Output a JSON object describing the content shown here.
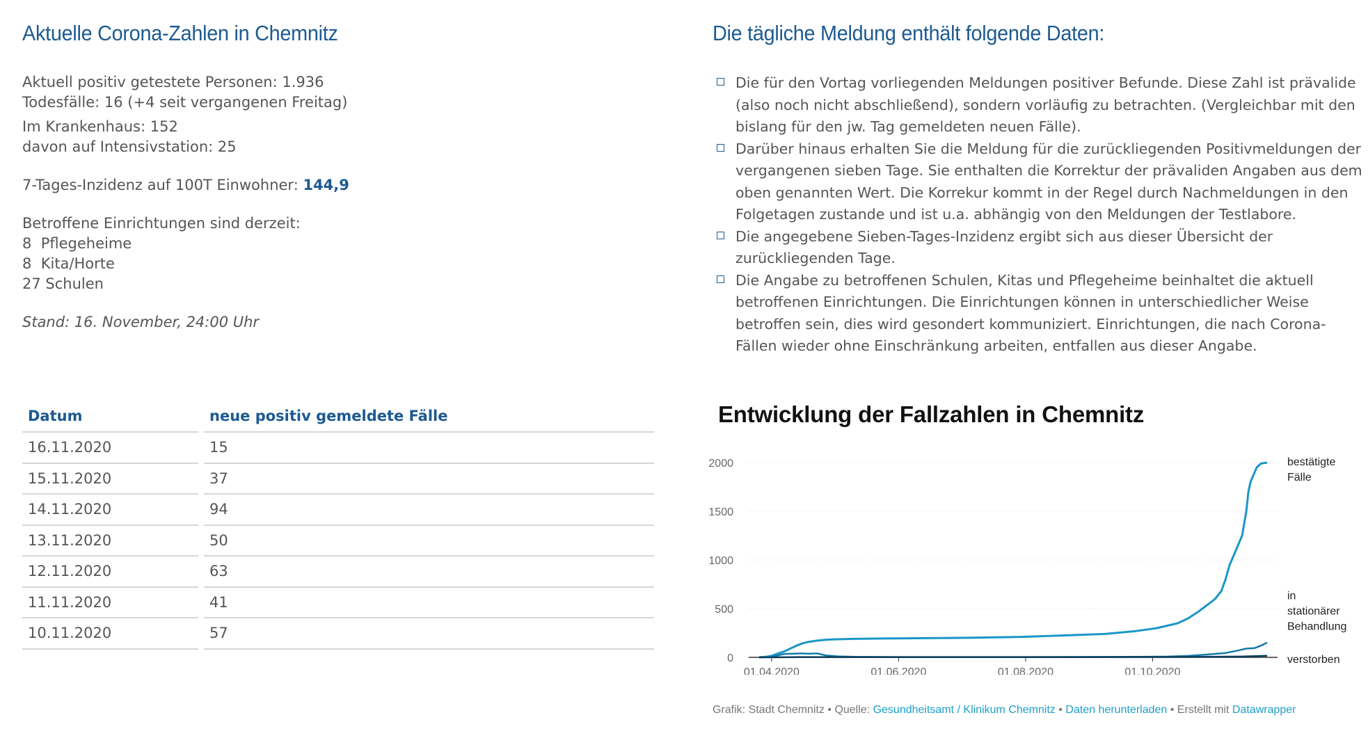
{
  "left": {
    "title": "Aktuelle Corona-Zahlen in Chemnitz",
    "positive": "Aktuell positiv getestete Personen: 1.936",
    "deaths": "Todesfälle: 16 (+4 seit vergangenen Freitag)",
    "hospital": "Im Krankenhaus: 152",
    "icu": "davon auf Intensivstation: 25",
    "incidence_label": "7-Tages-Inzidenz auf 100T Einwohner: ",
    "incidence_value": "144,9",
    "facilities_intro": "Betroffene Einrichtungen sind derzeit:",
    "facilities": [
      "8  Pflegeheime",
      "8  Kita/Horte",
      "27 Schulen"
    ],
    "stand": "Stand: 16. November, 24:00 Uhr"
  },
  "table": {
    "headers": [
      "Datum",
      "neue positiv gemeldete Fälle"
    ],
    "rows": [
      [
        "16.11.2020",
        "15"
      ],
      [
        "15.11.2020",
        "37"
      ],
      [
        "14.11.2020",
        "94"
      ],
      [
        "13.11.2020",
        "50"
      ],
      [
        "12.11.2020",
        "63"
      ],
      [
        "11.11.2020",
        "41"
      ],
      [
        "10.11.2020",
        "57"
      ]
    ]
  },
  "right": {
    "title": "Die tägliche Meldung enthält folgende Daten:",
    "items": [
      "Die für den Vortag vorliegenden Meldungen positiver Befunde. Diese Zahl ist prävalide (also noch nicht abschließend), sondern vorläufig zu betrachten. (Vergleichbar mit den bislang für den jw. Tag gemeldeten neuen Fälle).",
      "Darüber hinaus erhalten Sie die Meldung für die zurückliegenden Positivmeldungen der vergangenen sieben Tage. Sie enthalten die Korrektur der prävaliden Angaben aus dem oben genannten Wert. Die Korrekur kommt in der Regel durch Nachmeldungen in den Folgetagen zustande und ist u.a. abhängig von den Meldungen der Testlabore.",
      "Die angegebene Sieben-Tages-Inzidenz ergibt sich aus dieser Übersicht der zurückliegenden Tage.",
      "Die Angabe zu betroffenen Schulen, Kitas und Pflegeheime beinhaltet die aktuell betroffenen Einrichtungen. Die Einrichtungen können in unterschiedlicher Weise betroffen sein, dies wird gesondert kommuniziert. Einrichtungen, die nach Corona-Fällen wieder ohne Einschränkung arbeiten, entfallen aus dieser Angabe."
    ]
  },
  "chart_data": {
    "type": "line",
    "title": "Entwicklung der Fallzahlen in Chemnitz",
    "xlabel": "",
    "ylabel": "",
    "ylim": [
      0,
      2000
    ],
    "yticks": [
      "2000",
      "1500",
      "1000",
      "500",
      "0"
    ],
    "xticks": [
      "01.04.2020",
      "01.06.2020",
      "01.08.2020",
      "01.10.2020"
    ],
    "xtick_days": [
      0,
      61,
      122,
      183
    ],
    "xlim_days": [
      -11,
      243
    ],
    "series": [
      {
        "name": "bestätigte Fälle",
        "label_lines": [
          "bestätigte",
          "Fälle"
        ],
        "color": "#1b96c8",
        "points": [
          [
            -6,
            2
          ],
          [
            -3,
            5
          ],
          [
            0,
            15
          ],
          [
            3,
            40
          ],
          [
            6,
            60
          ],
          [
            9,
            90
          ],
          [
            12,
            120
          ],
          [
            15,
            145
          ],
          [
            18,
            160
          ],
          [
            22,
            172
          ],
          [
            26,
            180
          ],
          [
            30,
            185
          ],
          [
            40,
            190
          ],
          [
            60,
            195
          ],
          [
            90,
            200
          ],
          [
            120,
            210
          ],
          [
            140,
            225
          ],
          [
            160,
            240
          ],
          [
            175,
            270
          ],
          [
            185,
            300
          ],
          [
            195,
            350
          ],
          [
            200,
            400
          ],
          [
            205,
            470
          ],
          [
            210,
            550
          ],
          [
            213,
            600
          ],
          [
            216,
            680
          ],
          [
            218,
            800
          ],
          [
            220,
            950
          ],
          [
            223,
            1100
          ],
          [
            226,
            1250
          ],
          [
            228,
            1500
          ],
          [
            229,
            1700
          ],
          [
            230,
            1800
          ],
          [
            231,
            1850
          ],
          [
            233,
            1950
          ],
          [
            235,
            1990
          ],
          [
            238,
            2000
          ]
        ]
      },
      {
        "name": "in stationärer Behandlung",
        "label_lines": [
          "in",
          "stationärer",
          "Behandlung"
        ],
        "color": "#177aa6",
        "points": [
          [
            0,
            5
          ],
          [
            3,
            20
          ],
          [
            6,
            35
          ],
          [
            10,
            38
          ],
          [
            14,
            40
          ],
          [
            18,
            38
          ],
          [
            22,
            40
          ],
          [
            26,
            20
          ],
          [
            32,
            10
          ],
          [
            40,
            5
          ],
          [
            60,
            3
          ],
          [
            120,
            3
          ],
          [
            170,
            5
          ],
          [
            190,
            8
          ],
          [
            200,
            15
          ],
          [
            210,
            30
          ],
          [
            218,
            45
          ],
          [
            224,
            70
          ],
          [
            228,
            90
          ],
          [
            232,
            95
          ],
          [
            235,
            120
          ],
          [
            238,
            152
          ]
        ]
      },
      {
        "name": "verstorben",
        "label_lines": [
          "verstorben"
        ],
        "color": "#0d3d5c",
        "points": [
          [
            -6,
            0
          ],
          [
            10,
            2
          ],
          [
            20,
            3
          ],
          [
            60,
            3
          ],
          [
            150,
            3
          ],
          [
            200,
            4
          ],
          [
            225,
            8
          ],
          [
            238,
            16
          ]
        ]
      }
    ]
  },
  "footer": {
    "prefix": "Grafik: Stadt Chemnitz • Quelle: ",
    "source_link": "Gesundheitsamt / Klinikum Chemnitz",
    "sep1": " • ",
    "download_link": "Daten herunterladen",
    "sep2": " • Erstellt mit ",
    "tool_link": "Datawrapper"
  }
}
